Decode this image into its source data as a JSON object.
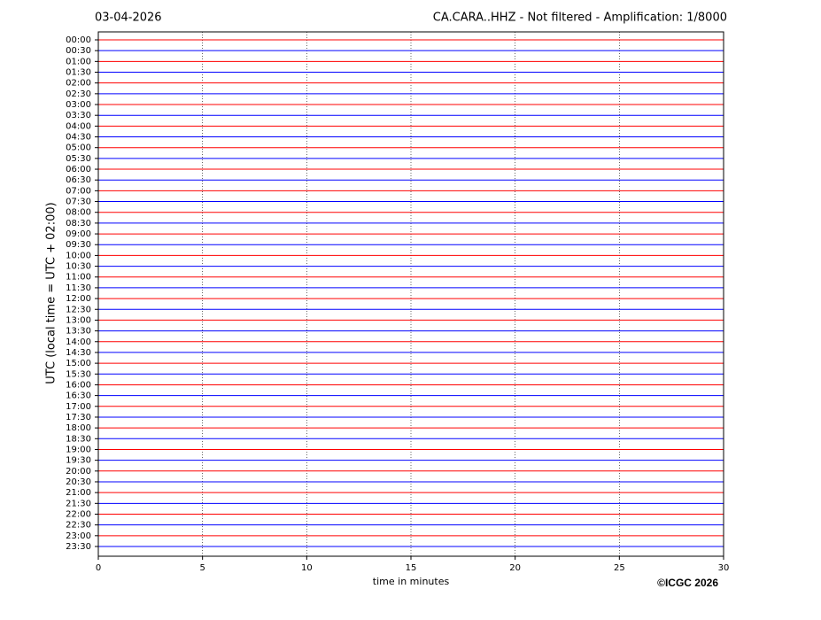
{
  "chart_data": {
    "type": "seismogram",
    "title": "03-04-2026",
    "subtitle": "CA.CARA..HHZ - Not filtered - Amplification: 1/8000",
    "ylabel": "UTC (local time = UTC + 02:00)",
    "xlabel": "time in minutes",
    "credit": "©ICGC 2026",
    "categories": [
      "00:00",
      "00:30",
      "01:00",
      "01:30",
      "02:00",
      "02:30",
      "03:00",
      "03:30",
      "04:00",
      "04:30",
      "05:00",
      "05:30",
      "06:00",
      "06:30",
      "07:00",
      "07:30",
      "08:00",
      "08:30",
      "09:00",
      "09:30",
      "10:00",
      "10:30",
      "11:00",
      "11:30",
      "12:00",
      "12:30",
      "13:00",
      "13:30",
      "14:00",
      "14:30",
      "15:00",
      "15:30",
      "16:00",
      "16:30",
      "17:00",
      "17:30",
      "18:00",
      "18:30",
      "19:00",
      "19:30",
      "20:00",
      "20:30",
      "21:00",
      "21:30",
      "22:00",
      "22:30",
      "23:00",
      "23:30"
    ],
    "colors": [
      "#ff0000",
      "#0000ff"
    ],
    "xlim": [
      0,
      30
    ],
    "xticks": [
      0,
      5,
      10,
      15,
      20,
      25,
      30
    ],
    "grid": true
  }
}
